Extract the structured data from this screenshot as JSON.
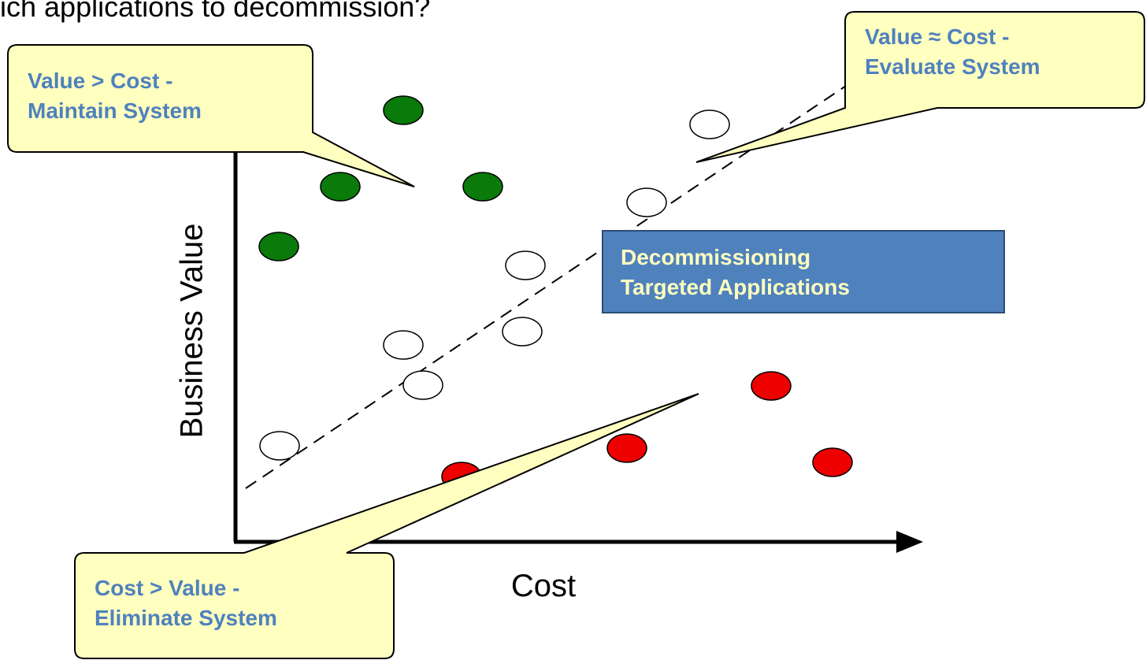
{
  "heading": "ich applications to decommission?",
  "axes": {
    "y_label": "Business Value",
    "x_label": "Cost"
  },
  "callouts": {
    "maintain": {
      "line1": "Value > Cost -",
      "line2": "Maintain System"
    },
    "evaluate": {
      "line1": "Value ≈ Cost -",
      "line2": "Evaluate System"
    },
    "eliminate": {
      "line1": "Cost > Value -",
      "line2": "Eliminate System"
    }
  },
  "target_box": {
    "line1": "Decommissioning",
    "line2": "Targeted Applications"
  },
  "colors": {
    "maintain_dot": "#0a7a0a",
    "eliminate_dot": "#ee0000",
    "evaluate_dot": "#ffffff",
    "callout_fill": "#ffffc0",
    "callout_text": "#4f81bd",
    "target_fill": "#4f81bd",
    "target_text": "#ffffc0"
  }
}
